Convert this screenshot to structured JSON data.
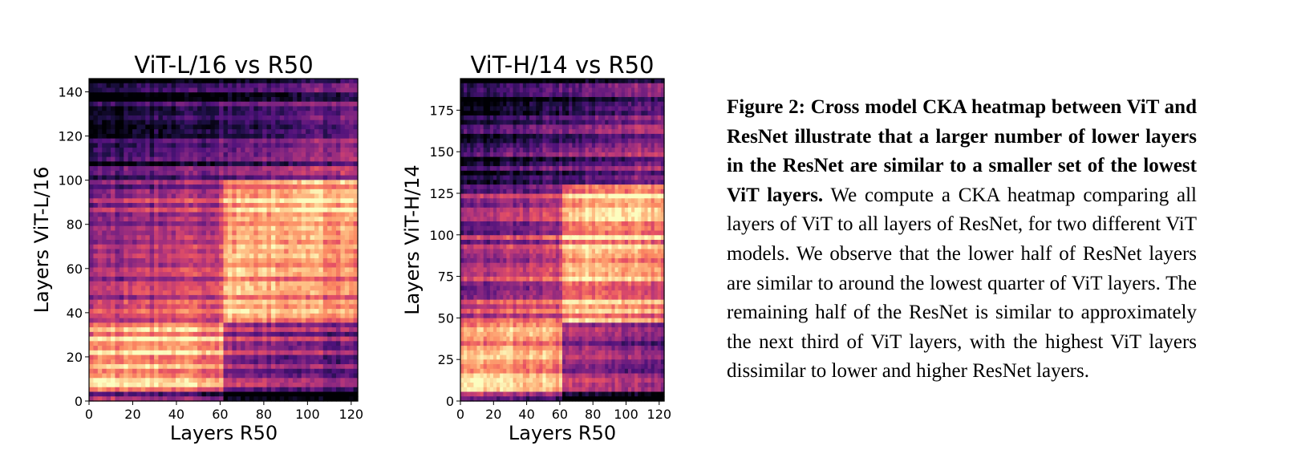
{
  "chart_data": [
    {
      "type": "heatmap",
      "title": "ViT-L/16 vs R50",
      "xlabel": "Layers R50",
      "ylabel": "Layers ViT-L/16",
      "xlim": [
        0,
        123
      ],
      "ylim": [
        0,
        146
      ],
      "xticks": [
        0,
        20,
        40,
        60,
        80,
        100,
        120
      ],
      "yticks": [
        0,
        20,
        40,
        60,
        80,
        100,
        120,
        140
      ],
      "colormap": "magma",
      "value_range": [
        0,
        1
      ],
      "similarity_regions": [
        {
          "x_range": [
            0,
            62
          ],
          "y_range": [
            0,
            35
          ],
          "level": "high"
        },
        {
          "x_range": [
            62,
            123
          ],
          "y_range": [
            36,
            100
          ],
          "level": "high"
        },
        {
          "x_range": [
            0,
            123
          ],
          "y_range": [
            100,
            146
          ],
          "level": "low"
        }
      ]
    },
    {
      "type": "heatmap",
      "title": "ViT-H/14 vs R50",
      "xlabel": "Layers R50",
      "ylabel": "Layers ViT-H/14",
      "xlim": [
        0,
        123
      ],
      "ylim": [
        0,
        194
      ],
      "xticks": [
        0,
        20,
        40,
        60,
        80,
        100,
        120
      ],
      "yticks": [
        0,
        25,
        50,
        75,
        100,
        125,
        150,
        175
      ],
      "colormap": "magma",
      "value_range": [
        0,
        1
      ],
      "similarity_regions": [
        {
          "x_range": [
            0,
            62
          ],
          "y_range": [
            0,
            48
          ],
          "level": "high"
        },
        {
          "x_range": [
            62,
            123
          ],
          "y_range": [
            48,
            130
          ],
          "level": "high"
        },
        {
          "x_range": [
            0,
            123
          ],
          "y_range": [
            130,
            194
          ],
          "level": "low"
        }
      ]
    }
  ],
  "caption": {
    "lead": "Figure 2:  Cross model CKA heatmap between ViT and ResNet illustrate that a larger number of lower layers in the ResNet are similar to a smaller set of the lowest ViT layers.",
    "body": "We compute a CKA heatmap comparing all layers of ViT to all layers of ResNet, for two different ViT models.  We observe that the lower half of ResNet layers are similar to around the lowest quarter of ViT layers. The remaining half of the ResNet is similar to approximately the next third of ViT layers, with the highest ViT layers dissimilar to lower and higher ResNet layers."
  }
}
